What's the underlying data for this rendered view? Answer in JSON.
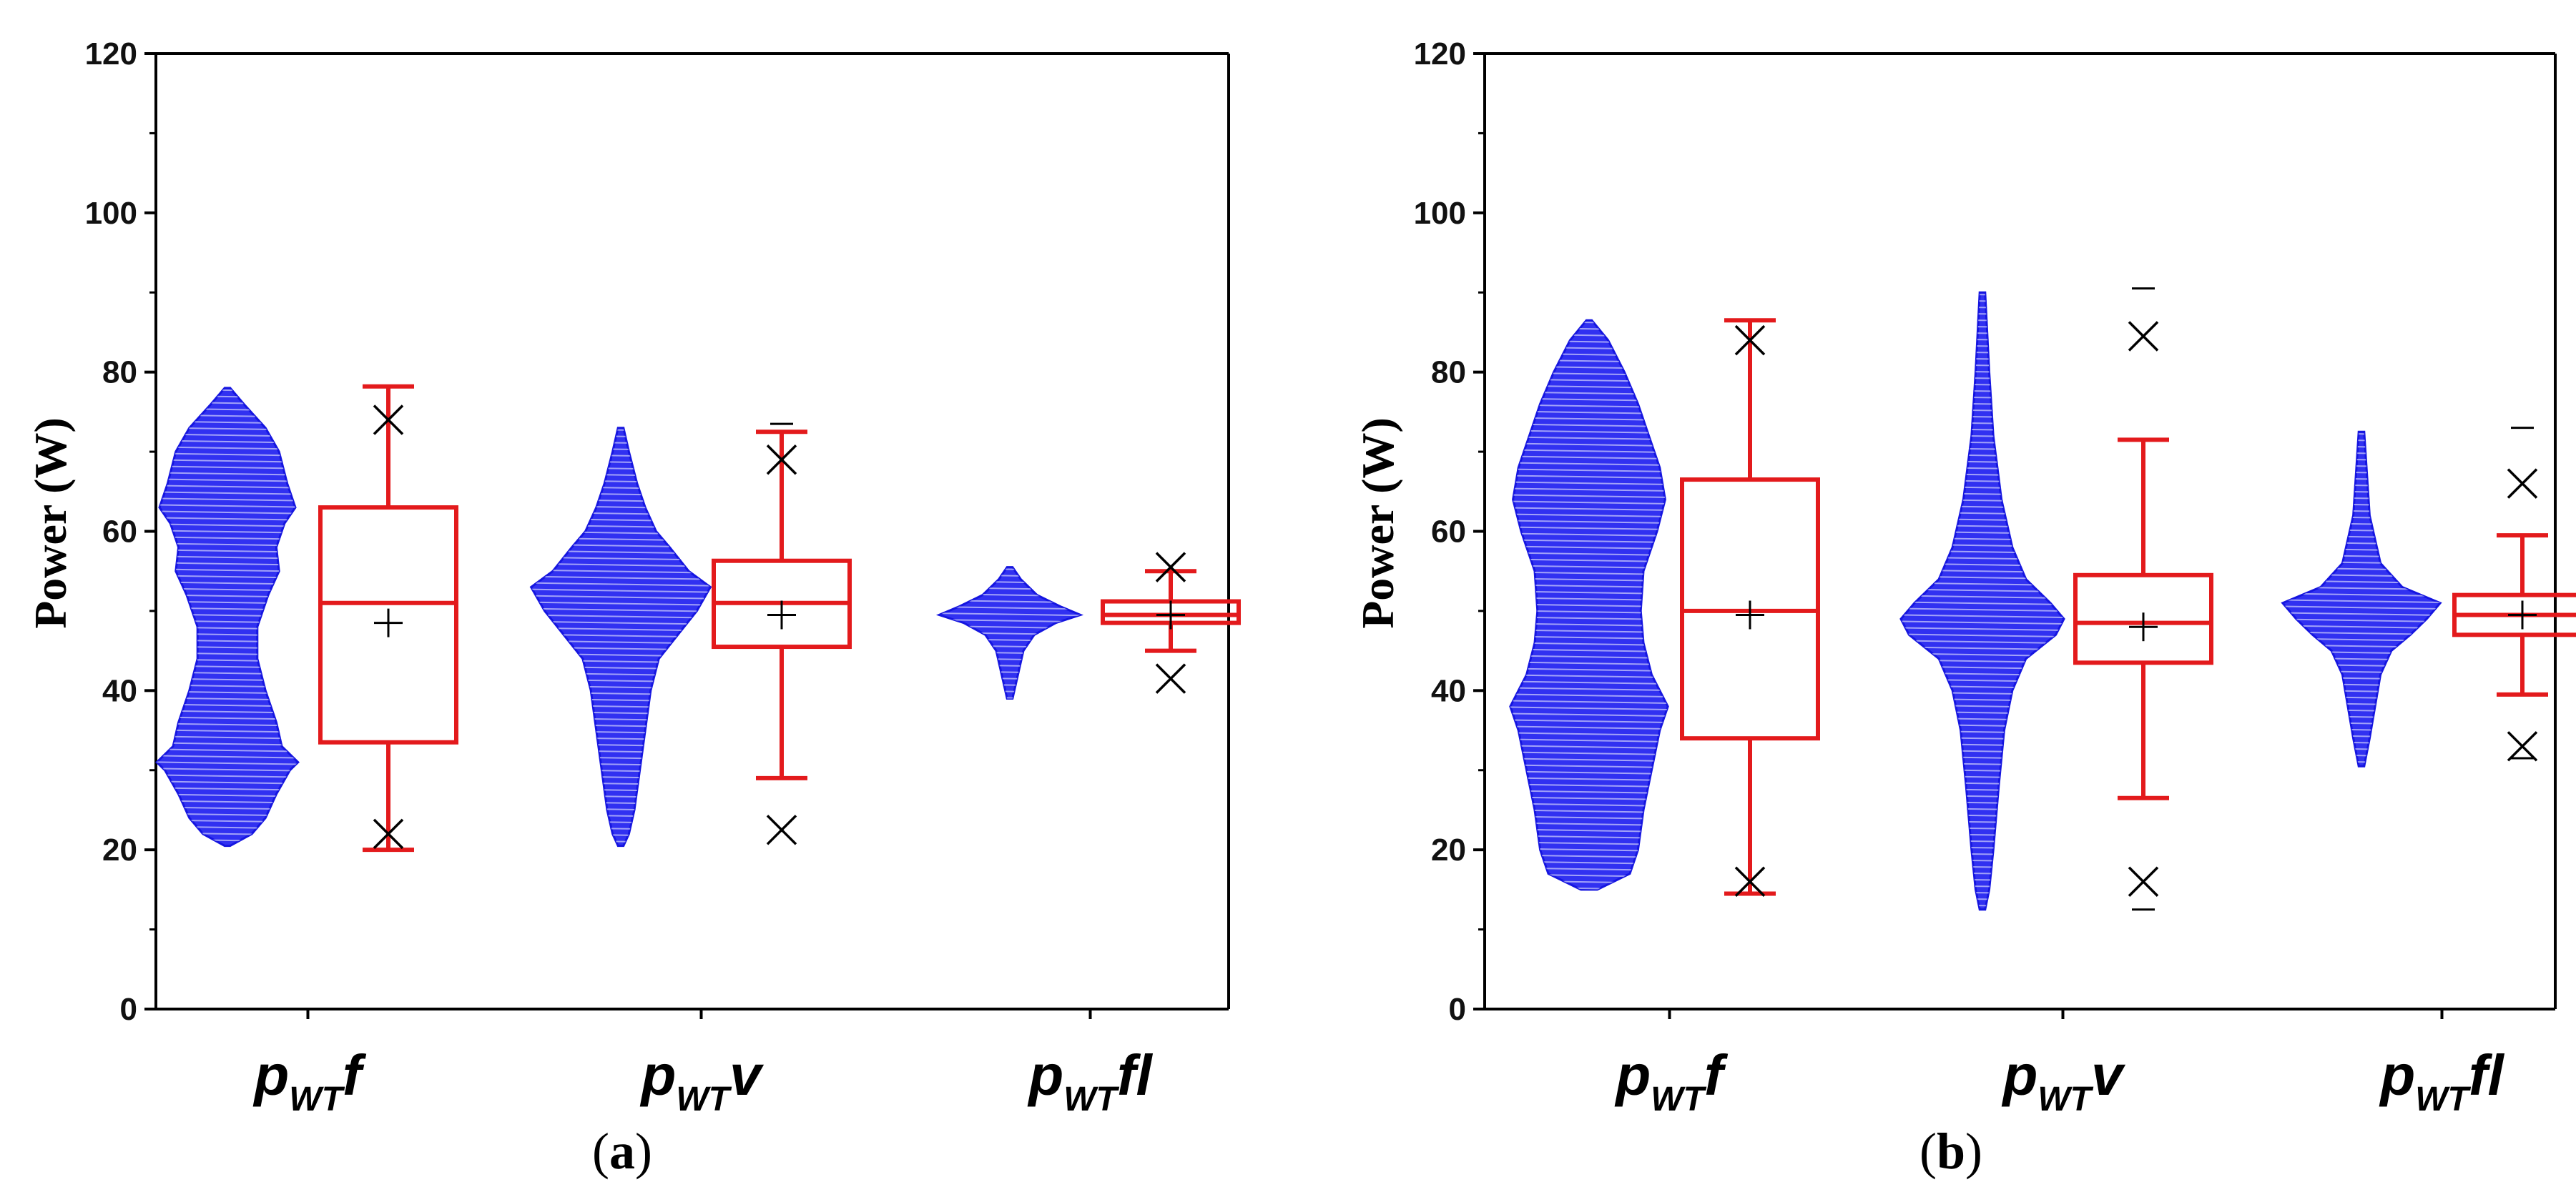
{
  "chart_data": [
    {
      "id": "a",
      "type": "violin-box",
      "caption_letter": "a",
      "ylabel": "Power (W)",
      "ylim": [
        0,
        120
      ],
      "yticks": [
        0,
        20,
        40,
        60,
        80,
        100,
        120
      ],
      "categories": [
        {
          "main": "p",
          "sub": "WT",
          "suffix": "f",
          "violin": {
            "min": 20.5,
            "max": 78,
            "widths": [
              [
                20.5,
                0.02
              ],
              [
                22,
                0.18
              ],
              [
                24,
                0.28
              ],
              [
                27,
                0.36
              ],
              [
                30,
                0.46
              ],
              [
                31,
                0.52
              ],
              [
                33,
                0.4
              ],
              [
                36,
                0.36
              ],
              [
                40,
                0.28
              ],
              [
                44,
                0.22
              ],
              [
                48,
                0.22
              ],
              [
                52,
                0.3
              ],
              [
                55,
                0.38
              ],
              [
                58,
                0.36
              ],
              [
                61,
                0.42
              ],
              [
                63,
                0.5
              ],
              [
                66,
                0.44
              ],
              [
                70,
                0.38
              ],
              [
                73,
                0.28
              ],
              [
                76,
                0.12
              ],
              [
                78,
                0.02
              ]
            ]
          },
          "box": {
            "q1": 33.5,
            "median": 51,
            "q3": 63,
            "mean": 48.5,
            "whisker_low": 20,
            "whisker_high": 78.2
          },
          "outliers": [
            22,
            74
          ],
          "range_marks": []
        },
        {
          "main": "p",
          "sub": "WT",
          "suffix": "v",
          "violin": {
            "min": 20.5,
            "max": 73,
            "widths": [
              [
                20.5,
                0.02
              ],
              [
                22,
                0.06
              ],
              [
                25,
                0.1
              ],
              [
                30,
                0.14
              ],
              [
                35,
                0.18
              ],
              [
                40,
                0.22
              ],
              [
                44,
                0.28
              ],
              [
                47,
                0.42
              ],
              [
                50,
                0.56
              ],
              [
                53,
                0.66
              ],
              [
                55,
                0.5
              ],
              [
                58,
                0.36
              ],
              [
                60,
                0.26
              ],
              [
                63,
                0.18
              ],
              [
                66,
                0.12
              ],
              [
                70,
                0.06
              ],
              [
                73,
                0.02
              ]
            ]
          },
          "box": {
            "q1": 45.5,
            "median": 51,
            "q3": 56.3,
            "mean": 49.5,
            "whisker_low": 29,
            "whisker_high": 72.5
          },
          "outliers": [
            22.5,
            69
          ],
          "range_marks": [
            73.5
          ]
        },
        {
          "main": "p",
          "sub": "WT",
          "suffix": "fl",
          "violin": {
            "min": 39,
            "max": 55.5,
            "widths": [
              [
                39,
                0.02
              ],
              [
                42,
                0.06
              ],
              [
                45,
                0.1
              ],
              [
                47,
                0.18
              ],
              [
                48.5,
                0.34
              ],
              [
                49.5,
                0.52
              ],
              [
                50.5,
                0.38
              ],
              [
                52,
                0.2
              ],
              [
                54,
                0.08
              ],
              [
                55.5,
                0.02
              ]
            ]
          },
          "box": {
            "q1": 48.5,
            "median": 49.5,
            "q3": 51.2,
            "mean": 49.5,
            "whisker_low": 45,
            "whisker_high": 55
          },
          "outliers": [
            41.5,
            55.5
          ],
          "range_marks": []
        }
      ]
    },
    {
      "id": "b",
      "type": "violin-box",
      "caption_letter": "b",
      "ylabel": "Power (W)",
      "ylim": [
        0,
        120
      ],
      "yticks": [
        0,
        20,
        40,
        60,
        80,
        100,
        120
      ],
      "categories": [
        {
          "main": "p",
          "sub": "WT",
          "suffix": "f",
          "violin": {
            "min": 15,
            "max": 86.5,
            "widths": [
              [
                15,
                0.06
              ],
              [
                17,
                0.3
              ],
              [
                20,
                0.36
              ],
              [
                25,
                0.4
              ],
              [
                30,
                0.46
              ],
              [
                35,
                0.52
              ],
              [
                38,
                0.58
              ],
              [
                42,
                0.46
              ],
              [
                46,
                0.4
              ],
              [
                50,
                0.38
              ],
              [
                55,
                0.4
              ],
              [
                60,
                0.5
              ],
              [
                64,
                0.56
              ],
              [
                68,
                0.52
              ],
              [
                72,
                0.44
              ],
              [
                76,
                0.36
              ],
              [
                80,
                0.26
              ],
              [
                84,
                0.14
              ],
              [
                86.5,
                0.02
              ]
            ]
          },
          "box": {
            "q1": 34,
            "median": 50,
            "q3": 66.5,
            "mean": 49.5,
            "whisker_low": 14.5,
            "whisker_high": 86.5
          },
          "outliers": [
            16,
            84
          ],
          "range_marks": []
        },
        {
          "main": "p",
          "sub": "WT",
          "suffix": "v",
          "violin": {
            "min": 12.5,
            "max": 90,
            "widths": [
              [
                12.5,
                0.02
              ],
              [
                15,
                0.05
              ],
              [
                20,
                0.08
              ],
              [
                28,
                0.12
              ],
              [
                35,
                0.16
              ],
              [
                40,
                0.22
              ],
              [
                44,
                0.32
              ],
              [
                47,
                0.54
              ],
              [
                49,
                0.6
              ],
              [
                51,
                0.5
              ],
              [
                54,
                0.32
              ],
              [
                58,
                0.22
              ],
              [
                64,
                0.14
              ],
              [
                72,
                0.08
              ],
              [
                80,
                0.05
              ],
              [
                90,
                0.02
              ]
            ]
          },
          "box": {
            "q1": 43.5,
            "median": 48.5,
            "q3": 54.5,
            "mean": 48,
            "whisker_low": 26.5,
            "whisker_high": 71.5
          },
          "outliers": [
            16,
            84.5
          ],
          "range_marks": [
            12.5,
            90.5
          ]
        },
        {
          "main": "p",
          "sub": "WT",
          "suffix": "fl",
          "violin": {
            "min": 30.5,
            "max": 72.5,
            "widths": [
              [
                30.5,
                0.02
              ],
              [
                34,
                0.06
              ],
              [
                38,
                0.1
              ],
              [
                42,
                0.14
              ],
              [
                45,
                0.22
              ],
              [
                47,
                0.36
              ],
              [
                49,
                0.48
              ],
              [
                51,
                0.58
              ],
              [
                53,
                0.3
              ],
              [
                56,
                0.14
              ],
              [
                62,
                0.06
              ],
              [
                72.5,
                0.02
              ]
            ]
          },
          "box": {
            "q1": 47,
            "median": 49.5,
            "q3": 52,
            "mean": 49.5,
            "whisker_low": 39.5,
            "whisker_high": 59.5
          },
          "outliers": [
            33,
            66
          ],
          "range_marks": [
            31.5,
            73
          ]
        }
      ]
    }
  ],
  "labels": {
    "ylabel": "Power (W)",
    "caption_a_open": "(",
    "caption_a_letter": "a",
    "caption_a_close": ")",
    "caption_b_open": "(",
    "caption_b_letter": "b",
    "caption_b_close": ")"
  },
  "colors": {
    "violin": "#2020f0",
    "box": "#e31a1c",
    "marks": "#000000"
  }
}
